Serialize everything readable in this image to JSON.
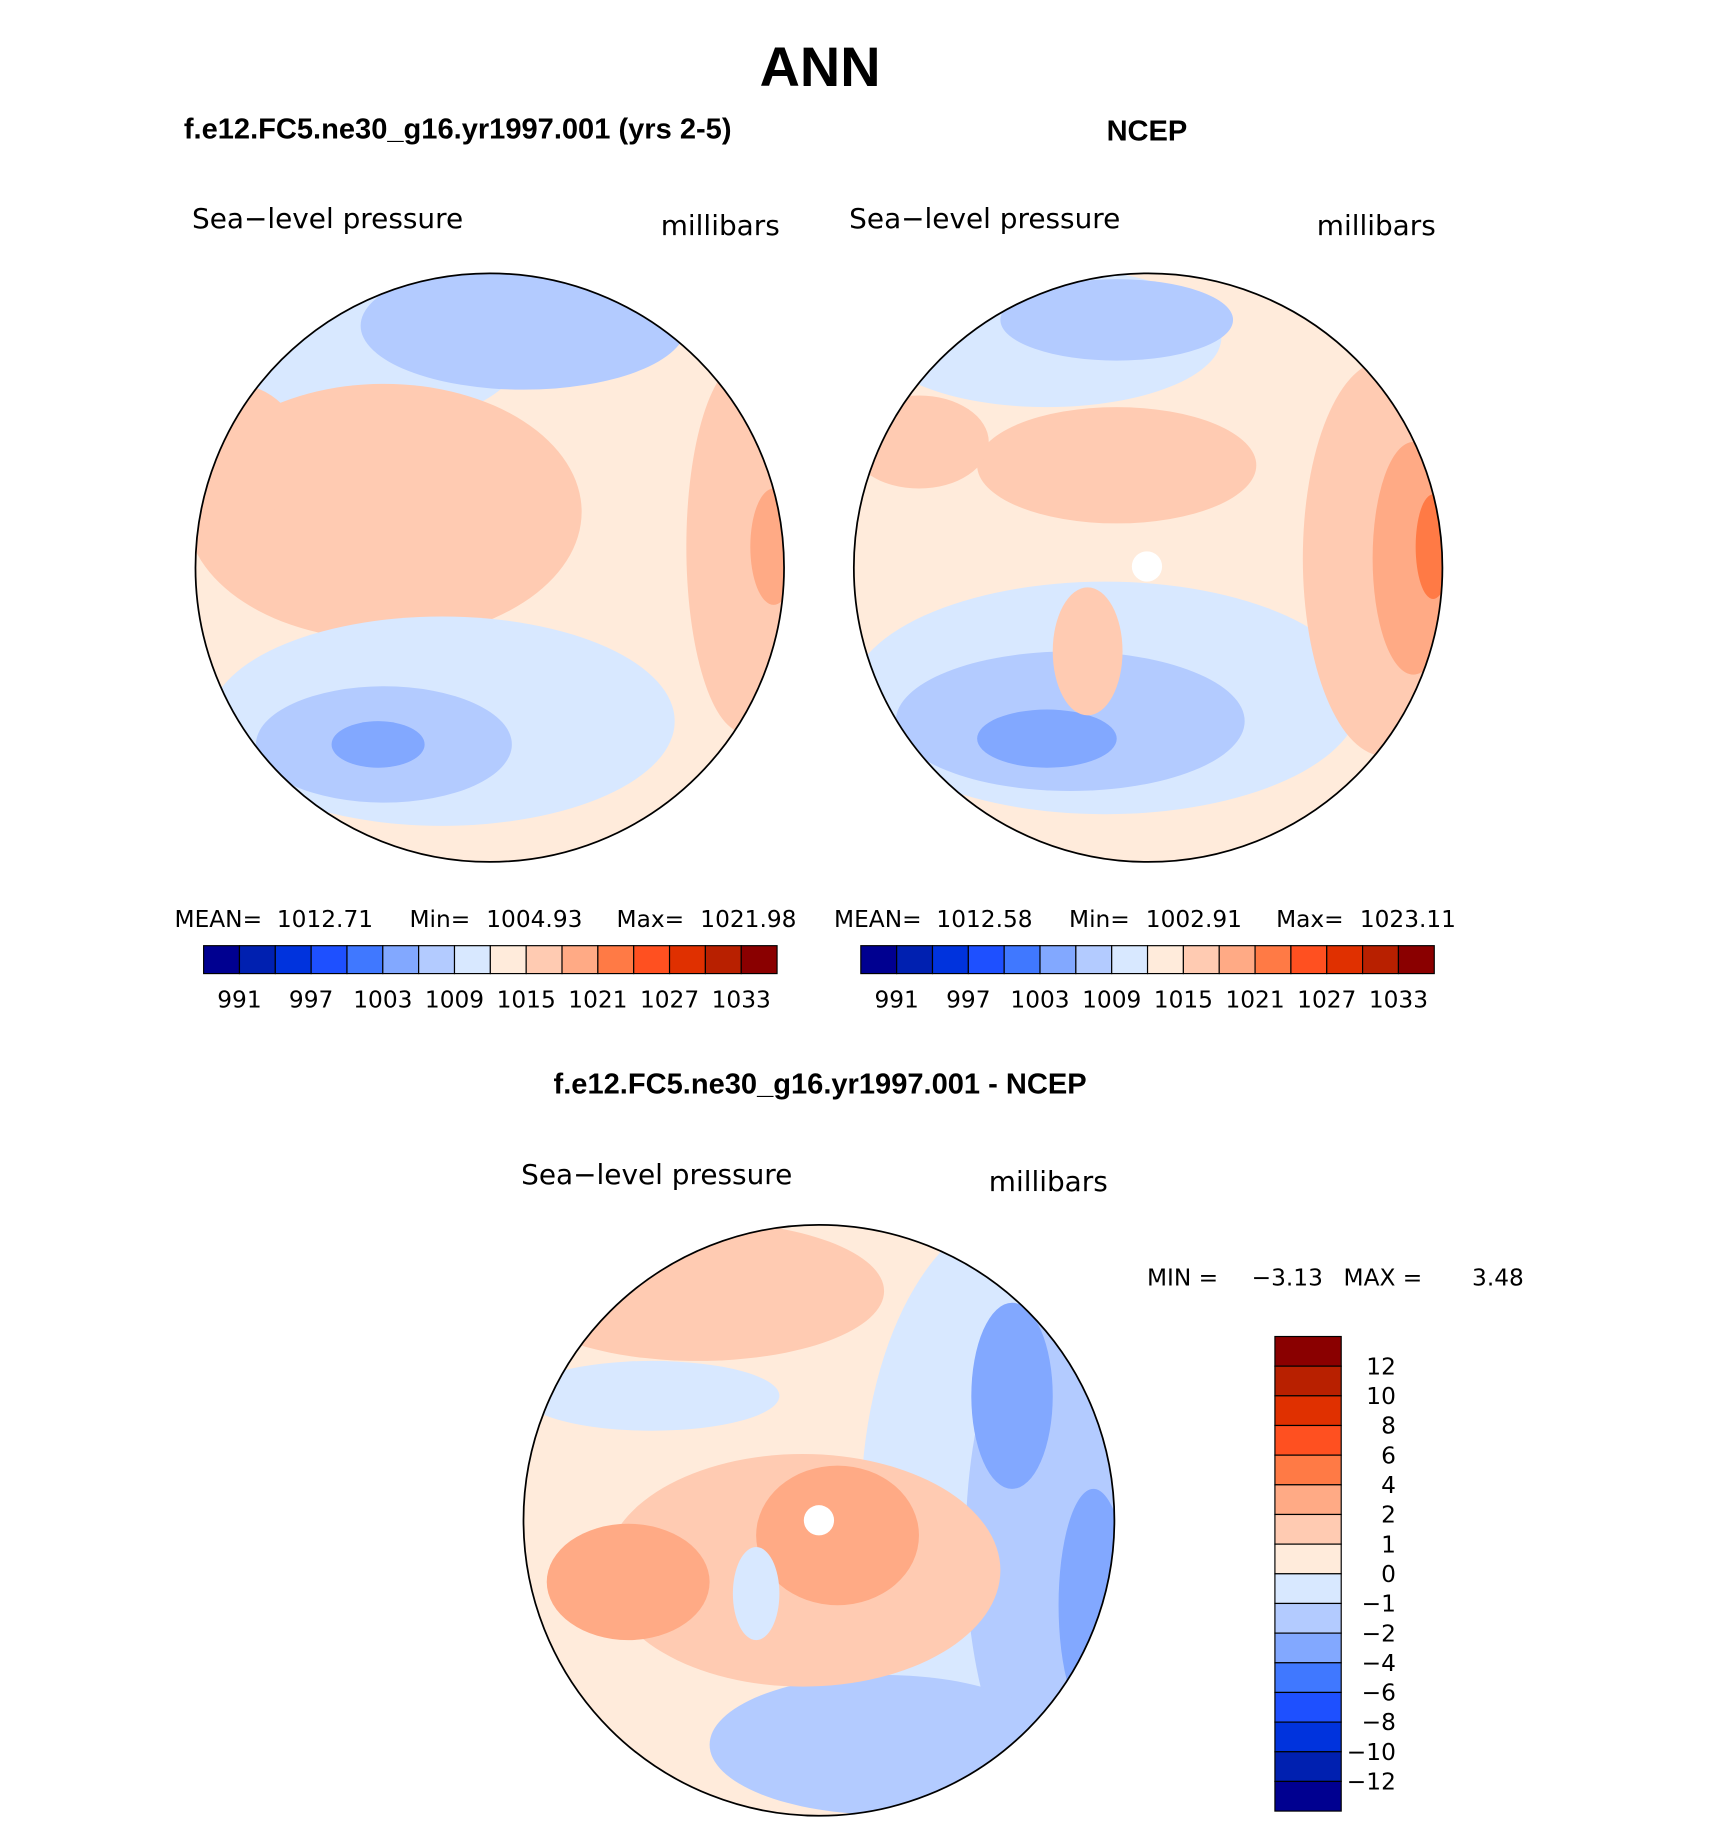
{
  "title": "ANN",
  "colors": [
    "#000090",
    "#0020B0",
    "#0033DD",
    "#1E50FF",
    "#4078FF",
    "#82A8FF",
    "#B3CBFF",
    "#D8E8FF",
    "#FFEBDB",
    "#FFCBB2",
    "#FFAA85",
    "#FF7A45",
    "#FF5020",
    "#E03000",
    "#B82000",
    "#8A0000"
  ],
  "chart_data": [
    {
      "type": "heatmap",
      "title": "f.e12.FC5.ne30_g16.yr1997.001 (yrs 2-5)",
      "variable": "Sea−level pressure",
      "units": "millibars",
      "projection": "north polar stereographic",
      "stats": {
        "mean_label": "MEAN=",
        "mean": "1012.71",
        "min_label": "Min=",
        "min": "1004.93",
        "max_label": "Max=",
        "max": "1021.98"
      },
      "colorbar_ticks": [
        "991",
        "997",
        "1003",
        "1009",
        "1015",
        "1021",
        "1027",
        "1033"
      ]
    },
    {
      "type": "heatmap",
      "title": "NCEP",
      "variable": "Sea−level pressure",
      "units": "millibars",
      "projection": "north polar stereographic",
      "stats": {
        "mean_label": "MEAN=",
        "mean": "1012.58",
        "min_label": "Min=",
        "min": "1002.91",
        "max_label": "Max=",
        "max": "1023.11"
      },
      "colorbar_ticks": [
        "991",
        "997",
        "1003",
        "1009",
        "1015",
        "1021",
        "1027",
        "1033"
      ]
    },
    {
      "type": "heatmap",
      "title": "f.e12.FC5.ne30_g16.yr1997.001 - NCEP",
      "variable": "Sea−level pressure",
      "units": "millibars",
      "projection": "north polar stereographic",
      "stats": {
        "min_label": "MIN =",
        "min": "−3.13",
        "max_label": "MAX =",
        "max": "3.48"
      },
      "colorbar_ticks": [
        "12",
        "10",
        "8",
        "6",
        "4",
        "2",
        "1",
        "0",
        "−1",
        "−2",
        "−4",
        "−6",
        "−8",
        "−10",
        "−12"
      ]
    }
  ]
}
